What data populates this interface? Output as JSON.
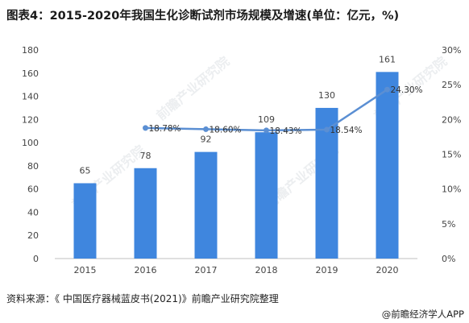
{
  "title": "图表4：2015-2020年我国生化诊断试剂市场规模及增速(单位：亿元，%)",
  "source": "资料来源：《 中国医疗器械蓝皮书(2021)》前瞻产业研究院整理",
  "brand": "@前瞻经济学人APP",
  "watermark": "前瞻产业研究院",
  "colors": {
    "bar": "#3f86de",
    "line": "#5b8fd3",
    "axis": "#bfbfbf",
    "text": "#444444"
  },
  "chart_data": {
    "type": "bar",
    "categories": [
      "2015",
      "2016",
      "2017",
      "2018",
      "2019",
      "2020"
    ],
    "series": [
      {
        "type": "bar",
        "axis": "left",
        "values": [
          65,
          78,
          92,
          109,
          130,
          161
        ],
        "data_labels": [
          "65",
          "78",
          "92",
          "109",
          "130",
          "161"
        ]
      },
      {
        "type": "line",
        "axis": "right",
        "values": [
          null,
          18.78,
          18.6,
          18.43,
          18.54,
          24.3
        ],
        "data_labels": [
          "",
          "18.78%",
          "18.60%",
          "18.43%",
          "18.54%",
          "24.30%"
        ]
      }
    ],
    "ylim_left": [
      0,
      180
    ],
    "yticks_left": [
      "0",
      "20",
      "40",
      "60",
      "80",
      "100",
      "120",
      "140",
      "160",
      "180"
    ],
    "ylim_right": [
      0,
      30
    ],
    "yticks_right": [
      "0%",
      "5%",
      "10%",
      "15%",
      "20%",
      "25%",
      "30%"
    ],
    "grid": false,
    "legend": "none"
  }
}
